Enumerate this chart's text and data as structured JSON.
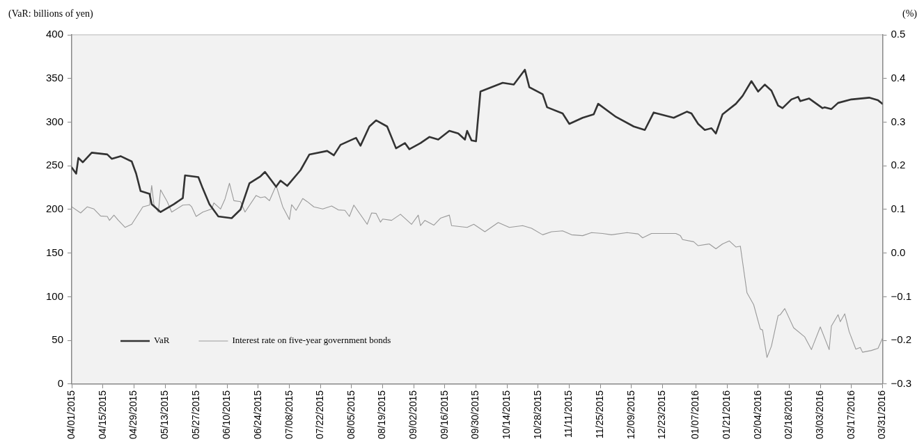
{
  "chart_data": {
    "type": "line",
    "ylabel": "(VaR: billions of yen)",
    "y2label": "(%)",
    "legend": "bottom left",
    "xlim": [
      "2015-04-01",
      "2016-03-31"
    ],
    "xticks": [
      {
        "value": "2015-04-01",
        "label": "04/01/2015"
      },
      {
        "value": "2015-04-15",
        "label": "04/15/2015"
      },
      {
        "value": "2015-04-29",
        "label": "04/29/2015"
      },
      {
        "value": "2015-05-13",
        "label": "05/13/2015"
      },
      {
        "value": "2015-05-27",
        "label": "05/27/2015"
      },
      {
        "value": "2015-06-10",
        "label": "06/10/2015"
      },
      {
        "value": "2015-06-24",
        "label": "06/24/2015"
      },
      {
        "value": "2015-07-08",
        "label": "07/08/2015"
      },
      {
        "value": "2015-07-22",
        "label": "07/22/2015"
      },
      {
        "value": "2015-08-05",
        "label": "08/05/2015"
      },
      {
        "value": "2015-08-19",
        "label": "08/19/2015"
      },
      {
        "value": "2015-09-02",
        "label": "09/02/2015"
      },
      {
        "value": "2015-09-16",
        "label": "09/16/2015"
      },
      {
        "value": "2015-09-30",
        "label": "09/30/2015"
      },
      {
        "value": "2015-10-14",
        "label": "10/14/2015"
      },
      {
        "value": "2015-10-28",
        "label": "10/28/2015"
      },
      {
        "value": "2015-11-11",
        "label": "11/11/2015"
      },
      {
        "value": "2015-11-25",
        "label": "11/25/2015"
      },
      {
        "value": "2015-12-09",
        "label": "12/09/2015"
      },
      {
        "value": "2015-12-23",
        "label": "12/23/2015"
      },
      {
        "value": "2016-01-07",
        "label": "01/07/2016"
      },
      {
        "value": "2016-01-21",
        "label": "01/21/2016"
      },
      {
        "value": "2016-02-04",
        "label": "02/04/2016"
      },
      {
        "value": "2016-02-18",
        "label": "02/18/2016"
      },
      {
        "value": "2016-03-03",
        "label": "03/03/2016"
      },
      {
        "value": "2016-03-17",
        "label": "03/17/2016"
      },
      {
        "value": "2016-03-31",
        "label": "03/31/2016"
      }
    ],
    "ylim": [
      0,
      400
    ],
    "yticks": [
      0,
      50,
      100,
      150,
      200,
      250,
      300,
      350,
      400
    ],
    "y2lim": [
      -0.3,
      0.5
    ],
    "y2ticks": [
      {
        "value": -0.3,
        "label": "−0.3"
      },
      {
        "value": -0.2,
        "label": "−0.2"
      },
      {
        "value": -0.1,
        "label": "−0.1"
      },
      {
        "value": 0,
        "label": "0.0"
      },
      0.1,
      0.2,
      0.3,
      0.4,
      0.5
    ],
    "series": [
      {
        "name": "VaR",
        "color": "#333333",
        "x": [
          "2015-04-01",
          "2015-04-03",
          "2015-04-04",
          "2015-04-06",
          "2015-04-10",
          "2015-04-17",
          "2015-04-19",
          "2015-04-23",
          "2015-04-28",
          "2015-04-30",
          "2015-05-02",
          "2015-05-06",
          "2015-05-07",
          "2015-05-11",
          "2015-05-17",
          "2015-05-21",
          "2015-05-22",
          "2015-05-28",
          "2015-05-30",
          "2015-06-02",
          "2015-06-06",
          "2015-06-12",
          "2015-06-16",
          "2015-06-20",
          "2015-06-25",
          "2015-06-27",
          "2015-07-02",
          "2015-07-04",
          "2015-07-07",
          "2015-07-13",
          "2015-07-17",
          "2015-07-25",
          "2015-07-28",
          "2015-07-31",
          "2015-08-07",
          "2015-08-09",
          "2015-08-13",
          "2015-08-16",
          "2015-08-21",
          "2015-08-25",
          "2015-08-29",
          "2015-08-31",
          "2015-09-05",
          "2015-09-09",
          "2015-09-13",
          "2015-09-18",
          "2015-09-22",
          "2015-09-25",
          "2015-09-26",
          "2015-09-28",
          "2015-09-30",
          "2015-10-02",
          "2015-10-06",
          "2015-10-12",
          "2015-10-17",
          "2015-10-22",
          "2015-10-24",
          "2015-10-30",
          "2015-11-01",
          "2015-11-08",
          "2015-11-11",
          "2015-11-17",
          "2015-11-22",
          "2015-11-24",
          "2015-12-02",
          "2015-12-10",
          "2015-12-15",
          "2015-12-19",
          "2015-12-28",
          "2016-01-03",
          "2016-01-05",
          "2016-01-08",
          "2016-01-11",
          "2016-01-14",
          "2016-01-16",
          "2016-01-19",
          "2016-01-25",
          "2016-01-28",
          "2016-02-01",
          "2016-02-04",
          "2016-02-07",
          "2016-02-10",
          "2016-02-13",
          "2016-02-15",
          "2016-02-19",
          "2016-02-22",
          "2016-02-23",
          "2016-02-27",
          "2016-03-04",
          "2016-03-05",
          "2016-03-08",
          "2016-03-11",
          "2016-03-17",
          "2016-03-25",
          "2016-03-29",
          "2016-03-31"
        ],
        "values": [
          248,
          241,
          259,
          254,
          265,
          263,
          258,
          261,
          255,
          241,
          221,
          218,
          206,
          197,
          206,
          213,
          239,
          237,
          224,
          206,
          192,
          190,
          200,
          230,
          238,
          243,
          226,
          233,
          227,
          245,
          263,
          267,
          262,
          274,
          282,
          273,
          295,
          302,
          295,
          270,
          276,
          269,
          276,
          283,
          280,
          290,
          287,
          280,
          290,
          279,
          278,
          335,
          339,
          345,
          343,
          360,
          340,
          332,
          317,
          310,
          298,
          305,
          309,
          321,
          306,
          295,
          291,
          311,
          305,
          312,
          310,
          298,
          291,
          293,
          287,
          309,
          321,
          330,
          347,
          335,
          343,
          336,
          319,
          316,
          326,
          329,
          324,
          327,
          316,
          317,
          315,
          322,
          326,
          328,
          325,
          321
        ]
      },
      {
        "name": "Interest rate on five-year government bonds",
        "color": "#999999",
        "axis": "y2",
        "x": [
          "2015-04-01",
          "2015-04-05",
          "2015-04-08",
          "2015-04-11",
          "2015-04-14",
          "2015-04-17",
          "2015-04-18",
          "2015-04-20",
          "2015-04-22",
          "2015-04-25",
          "2015-04-28",
          "2015-05-03",
          "2015-05-06",
          "2015-05-07",
          "2015-05-08",
          "2015-05-10",
          "2015-05-11",
          "2015-05-14",
          "2015-05-16",
          "2015-05-21",
          "2015-05-24",
          "2015-05-25",
          "2015-05-27",
          "2015-05-30",
          "2015-06-03",
          "2015-06-04",
          "2015-06-07",
          "2015-06-09",
          "2015-06-11",
          "2015-06-13",
          "2015-06-16",
          "2015-06-18",
          "2015-06-23",
          "2015-06-25",
          "2015-06-27",
          "2015-06-29",
          "2015-07-02",
          "2015-07-05",
          "2015-07-08",
          "2015-07-09",
          "2015-07-11",
          "2015-07-14",
          "2015-07-16",
          "2015-07-19",
          "2015-07-23",
          "2015-07-27",
          "2015-07-30",
          "2015-08-02",
          "2015-08-04",
          "2015-08-06",
          "2015-08-12",
          "2015-08-14",
          "2015-08-16",
          "2015-08-18",
          "2015-08-19",
          "2015-08-23",
          "2015-08-27",
          "2015-09-01",
          "2015-09-04",
          "2015-09-05",
          "2015-09-07",
          "2015-09-11",
          "2015-09-14",
          "2015-09-18",
          "2015-09-19",
          "2015-09-26",
          "2015-09-29",
          "2015-10-04",
          "2015-10-10",
          "2015-10-15",
          "2015-10-21",
          "2015-10-25",
          "2015-10-30",
          "2015-11-03",
          "2015-11-08",
          "2015-11-12",
          "2015-11-17",
          "2015-11-21",
          "2015-11-26",
          "2015-11-30",
          "2015-12-07",
          "2015-12-12",
          "2015-12-14",
          "2015-12-18",
          "2015-12-29",
          "2015-12-31",
          "2016-01-01",
          "2016-01-06",
          "2016-01-08",
          "2016-01-13",
          "2016-01-16",
          "2016-01-19",
          "2016-01-22",
          "2016-01-25",
          "2016-01-27",
          "2016-01-30",
          "2016-02-02",
          "2016-02-05",
          "2016-02-06",
          "2016-02-08",
          "2016-02-10",
          "2016-02-13",
          "2016-02-14",
          "2016-02-16",
          "2016-02-20",
          "2016-02-25",
          "2016-02-28",
          "2016-03-03",
          "2016-03-07",
          "2016-03-08",
          "2016-03-11",
          "2016-03-12",
          "2016-03-14",
          "2016-03-16",
          "2016-03-19",
          "2016-03-21",
          "2016-03-22",
          "2016-03-26",
          "2016-03-29",
          "2016-03-31"
        ],
        "values": [
          0.106,
          0.092,
          0.106,
          0.101,
          0.085,
          0.084,
          0.075,
          0.087,
          0.075,
          0.059,
          0.066,
          0.106,
          0.11,
          0.155,
          0.111,
          0.094,
          0.145,
          0.118,
          0.094,
          0.11,
          0.111,
          0.106,
          0.084,
          0.094,
          0.101,
          0.115,
          0.101,
          0.124,
          0.16,
          0.12,
          0.118,
          0.094,
          0.132,
          0.127,
          0.129,
          0.12,
          0.155,
          0.106,
          0.077,
          0.111,
          0.098,
          0.125,
          0.118,
          0.106,
          0.101,
          0.108,
          0.099,
          0.098,
          0.084,
          0.11,
          0.066,
          0.092,
          0.091,
          0.071,
          0.078,
          0.075,
          0.089,
          0.066,
          0.087,
          0.063,
          0.075,
          0.064,
          0.08,
          0.087,
          0.063,
          0.059,
          0.066,
          0.049,
          0.07,
          0.059,
          0.063,
          0.057,
          0.042,
          0.049,
          0.051,
          0.042,
          0.04,
          0.047,
          0.045,
          0.042,
          0.047,
          0.044,
          0.035,
          0.045,
          0.045,
          0.04,
          0.031,
          0.026,
          0.017,
          0.021,
          0.01,
          0.021,
          0.028,
          0.014,
          0.016,
          -0.091,
          -0.118,
          -0.174,
          -0.176,
          -0.239,
          -0.213,
          -0.143,
          -0.141,
          -0.127,
          -0.171,
          -0.192,
          -0.221,
          -0.169,
          -0.221,
          -0.167,
          -0.141,
          -0.157,
          -0.139,
          -0.18,
          -0.22,
          -0.216,
          -0.227,
          -0.223,
          -0.218,
          -0.195
        ]
      }
    ]
  }
}
